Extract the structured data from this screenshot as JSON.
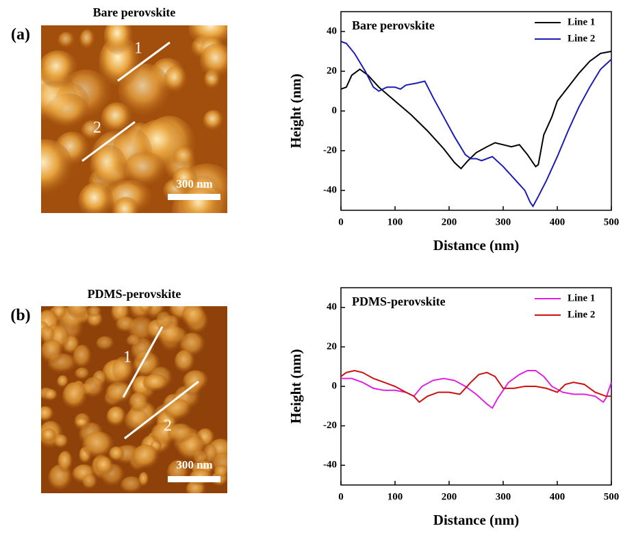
{
  "panels": [
    {
      "label": "(a)",
      "title": "Bare perovskite",
      "scale_bar": "300 nm",
      "line_labels": [
        "1",
        "2"
      ]
    },
    {
      "label": "(b)",
      "title": "PDMS-perovskite",
      "scale_bar": "300 nm",
      "line_labels": [
        "1",
        "2"
      ]
    }
  ],
  "chart_data": [
    {
      "type": "line",
      "title": "Bare perovskite",
      "x_label": "Distance (nm)",
      "y_label": "Height (nm)",
      "xlim": [
        0,
        500
      ],
      "xticks": [
        0,
        100,
        200,
        300,
        400,
        500
      ],
      "ylim": [
        -50,
        50
      ],
      "yticks": [
        -40,
        -20,
        0,
        20,
        40
      ],
      "legend": "upper right",
      "series": [
        {
          "name": "Line 1",
          "color": "#000000",
          "x": [
            0,
            10,
            20,
            35,
            50,
            70,
            100,
            130,
            160,
            190,
            210,
            222,
            235,
            250,
            270,
            285,
            300,
            315,
            330,
            345,
            360,
            365,
            375,
            390,
            400,
            420,
            440,
            460,
            480,
            500
          ],
          "values": [
            11,
            12,
            18,
            21,
            18,
            12,
            5,
            -2,
            -10,
            -19,
            -26,
            -29,
            -25,
            -21,
            -18,
            -16,
            -17,
            -18,
            -17,
            -22,
            -28,
            -27,
            -12,
            -3,
            5,
            12,
            19,
            25,
            29,
            30
          ]
        },
        {
          "name": "Line 2",
          "color": "#1a1ab4",
          "x": [
            0,
            10,
            25,
            45,
            60,
            70,
            85,
            100,
            110,
            120,
            140,
            155,
            170,
            190,
            210,
            230,
            240,
            250,
            260,
            280,
            300,
            320,
            340,
            350,
            355,
            365,
            380,
            400,
            420,
            440,
            460,
            480,
            500
          ],
          "values": [
            35,
            34,
            29,
            20,
            12,
            10,
            12,
            12,
            11,
            13,
            14,
            15,
            7,
            -3,
            -13,
            -22,
            -24,
            -24,
            -25,
            -23,
            -28,
            -34,
            -40,
            -46,
            -48,
            -43,
            -35,
            -23,
            -10,
            2,
            12,
            21,
            26
          ]
        }
      ]
    },
    {
      "type": "line",
      "title": "PDMS-perovskite",
      "x_label": "Distance (nm)",
      "y_label": "Height (nm)",
      "xlim": [
        0,
        500
      ],
      "xticks": [
        0,
        100,
        200,
        300,
        400,
        500
      ],
      "ylim": [
        -50,
        50
      ],
      "yticks": [
        -40,
        -20,
        0,
        20,
        40
      ],
      "legend": "upper right",
      "series": [
        {
          "name": "Line 1",
          "color": "#e020e0",
          "x": [
            0,
            20,
            40,
            60,
            80,
            100,
            120,
            135,
            150,
            170,
            190,
            210,
            230,
            250,
            270,
            280,
            290,
            310,
            330,
            345,
            360,
            375,
            390,
            410,
            430,
            450,
            470,
            485,
            490,
            500
          ],
          "values": [
            4,
            4,
            2,
            -1,
            -2,
            -2,
            -3,
            -5,
            0,
            3,
            4,
            3,
            0,
            -4,
            -9,
            -11,
            -6,
            2,
            6,
            8,
            8,
            5,
            0,
            -3,
            -4,
            -4,
            -5,
            -8,
            -6,
            2
          ]
        },
        {
          "name": "Line 2",
          "color": "#cc1010",
          "x": [
            0,
            10,
            25,
            40,
            60,
            80,
            100,
            120,
            135,
            145,
            160,
            180,
            200,
            220,
            240,
            255,
            270,
            285,
            300,
            320,
            340,
            360,
            380,
            400,
            415,
            430,
            450,
            470,
            490,
            500
          ],
          "values": [
            5,
            7,
            8,
            7,
            4,
            2,
            0,
            -3,
            -5,
            -8,
            -5,
            -3,
            -3,
            -4,
            2,
            6,
            7,
            5,
            -1,
            -1,
            0,
            0,
            -1,
            -3,
            1,
            2,
            1,
            -3,
            -5,
            -5
          ]
        }
      ]
    }
  ]
}
